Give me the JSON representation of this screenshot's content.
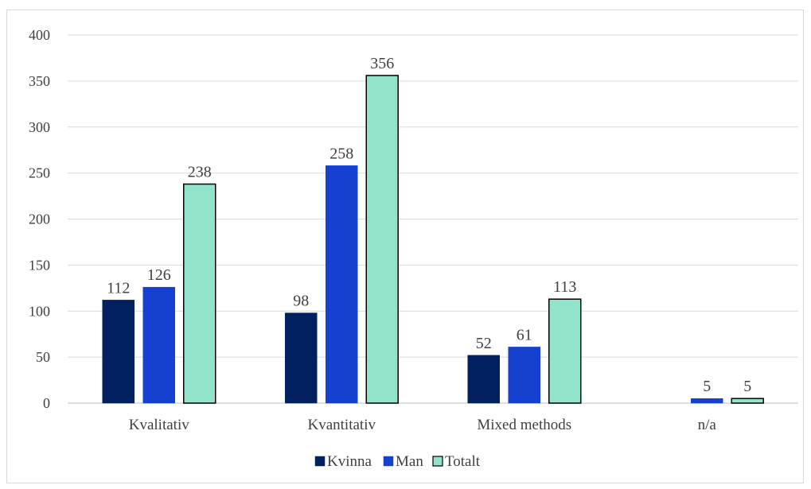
{
  "chart_data": {
    "type": "bar",
    "title": "",
    "xlabel": "",
    "ylabel": "",
    "ylim": [
      0,
      400
    ],
    "yticks": [
      0,
      50,
      100,
      150,
      200,
      250,
      300,
      350,
      400
    ],
    "grid": true,
    "legend_position": "bottom",
    "categories": [
      "Kvalitativ",
      "Kvantitativ",
      "Mixed methods",
      "n/a"
    ],
    "series": [
      {
        "name": "Kvinna",
        "color": "#002060",
        "outline": "#002060",
        "values": [
          112,
          98,
          52,
          0
        ],
        "labels": [
          "112",
          "98",
          "52",
          ""
        ]
      },
      {
        "name": "Man",
        "color": "#1540D0",
        "outline": "#1540D0",
        "values": [
          126,
          258,
          61,
          5
        ],
        "labels": [
          "126",
          "258",
          "61",
          "5"
        ]
      },
      {
        "name": "Totalt",
        "color": "#92E3CC",
        "outline": "#000000",
        "values": [
          238,
          356,
          113,
          5
        ],
        "labels": [
          "238",
          "356",
          "113",
          "5"
        ]
      }
    ]
  }
}
